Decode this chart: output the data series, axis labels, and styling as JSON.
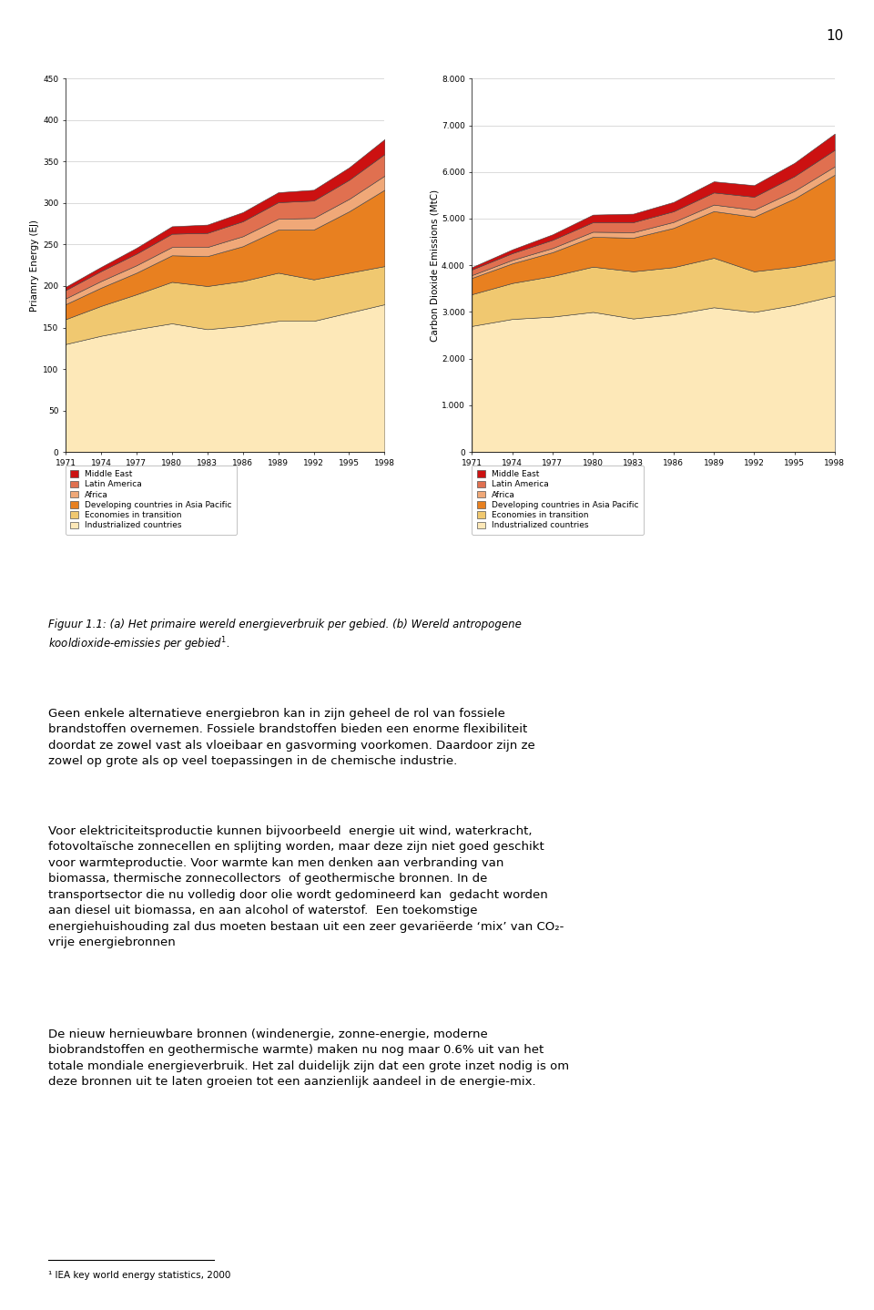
{
  "years": [
    1971,
    1974,
    1977,
    1980,
    1983,
    1986,
    1989,
    1992,
    1995,
    1998
  ],
  "chart1_ylabel": "Priamry Energy (EJ)",
  "chart1_ylim": [
    0,
    450
  ],
  "chart1_yticks": [
    0,
    50,
    100,
    150,
    200,
    250,
    300,
    350,
    400,
    450
  ],
  "chart2_ylabel": "Carbon Dioxide Emissions (MtC)",
  "chart2_ylim": [
    0,
    8000
  ],
  "chart2_yticks": [
    0,
    1000,
    2000,
    3000,
    4000,
    5000,
    6000,
    7000,
    8000
  ],
  "chart2_ytick_labels": [
    "0",
    "1.000",
    "2.000",
    "3.000",
    "4.000",
    "5.000",
    "6.000",
    "7.000",
    "8.000"
  ],
  "legend_labels": [
    "Middle East",
    "Latin America",
    "Africa",
    "Developing countries in Asia Pacific",
    "Economies in transition",
    "Industrialized countries"
  ],
  "colors": [
    "#cc1111",
    "#e07050",
    "#f0a878",
    "#e88020",
    "#f0c870",
    "#fde8b8"
  ],
  "energy_data": {
    "Industrialized countries": [
      130,
      140,
      148,
      155,
      148,
      152,
      158,
      158,
      168,
      178
    ],
    "Economies in transition": [
      30,
      36,
      42,
      50,
      52,
      54,
      58,
      50,
      48,
      46
    ],
    "Developing countries in Asia Pacific": [
      18,
      22,
      26,
      32,
      36,
      42,
      52,
      60,
      74,
      92
    ],
    "Africa": [
      7,
      8,
      9,
      10,
      11,
      12,
      13,
      14,
      15,
      17
    ],
    "Latin America": [
      10,
      12,
      14,
      16,
      17,
      18,
      20,
      21,
      23,
      26
    ],
    "Middle East": [
      4,
      5,
      7,
      9,
      10,
      11,
      12,
      13,
      15,
      18
    ]
  },
  "co2_data": {
    "Industrialized countries": [
      2700,
      2850,
      2900,
      3000,
      2860,
      2950,
      3100,
      3000,
      3150,
      3350
    ],
    "Economies in transition": [
      680,
      770,
      870,
      970,
      1010,
      1010,
      1060,
      870,
      820,
      770
    ],
    "Developing countries in Asia Pacific": [
      350,
      420,
      510,
      640,
      720,
      840,
      1000,
      1170,
      1460,
      1820
    ],
    "Africa": [
      60,
      75,
      90,
      108,
      118,
      128,
      140,
      150,
      164,
      178
    ],
    "Latin America": [
      120,
      145,
      175,
      205,
      215,
      228,
      260,
      278,
      315,
      355
    ],
    "Middle East": [
      50,
      80,
      118,
      162,
      182,
      200,
      238,
      248,
      285,
      348
    ]
  },
  "page_number": "10",
  "paragraph1": "Geen enkele alternatieve energiebron kan in zijn geheel de rol van fossiele brandstoffen overnemen. Fossiele brandstoffen bieden een enorme flexibiliteit doordat ze zowel vast als vloeibaar en gasvorming voorkomen. Daardoor zijn ze zowel op grote als op veel toepassingen in de chemische industrie.",
  "paragraph2": "Voor elektriciteitsproductie kunnen bijvoorbeeld  energie uit wind, waterkracht, fotovoltaïsche zonnecellen en splijting worden, maar deze zijn niet goed geschikt voor warmteproductie. Voor warmte kan men denken aan verbranding van biomassa, thermische zonnecollectors  of geothermische bronnen. In de transportsector die nu volledig door olie wordt gedomineerd kan  gedacht worden aan diesel uit biomassa, en aan alcohol of waterstof.  Een toekomstige energiehuishouding zal dus moeten bestaan uit een zeer gevariëerde ‘mix’ van CO₂-vrije energiebronnen",
  "paragraph3": "De nieuw hernieuwbare bronnen (windenergie, zonne-energie, moderne biobrandstoffen en geothermische warmte) maken nu nog maar 0.6% uit van het totale mondiale energieverbruik. Het zal duidelijk zijn dat een grote inzet nodig is om deze bronnen uit te laten groeien tot een aanzienlijk aandeel in de energie-mix."
}
